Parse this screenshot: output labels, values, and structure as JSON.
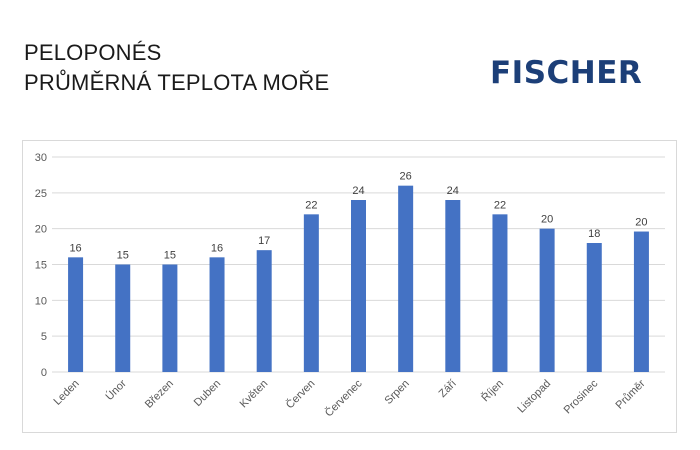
{
  "header": {
    "title_line1": "PELOPONÉS",
    "title_line2": "PRŮMĚRNÁ TEPLOTA MOŘE",
    "logo_text": "FISCHER"
  },
  "colors": {
    "bar": "#4472c4",
    "logo": "#1c3f78",
    "grid": "#d9d9d9"
  },
  "chart_data": {
    "type": "bar",
    "categories": [
      "Leden",
      "Únor",
      "Březen",
      "Duben",
      "Květen",
      "Červen",
      "Červenec",
      "Srpen",
      "Září",
      "Říjen",
      "Listopad",
      "Prosinec",
      "Průměr"
    ],
    "values": [
      16,
      15,
      15,
      16,
      17,
      22,
      24,
      26,
      24,
      22,
      20,
      18,
      19.6
    ],
    "data_labels": [
      "16",
      "15",
      "15",
      "16",
      "17",
      "22",
      "24",
      "26",
      "24",
      "22",
      "20",
      "18",
      "20"
    ],
    "yticks": [
      "0",
      "5",
      "10",
      "15",
      "20",
      "25",
      "30"
    ],
    "ylim": [
      0,
      30
    ],
    "grid": true,
    "legend": "none"
  }
}
